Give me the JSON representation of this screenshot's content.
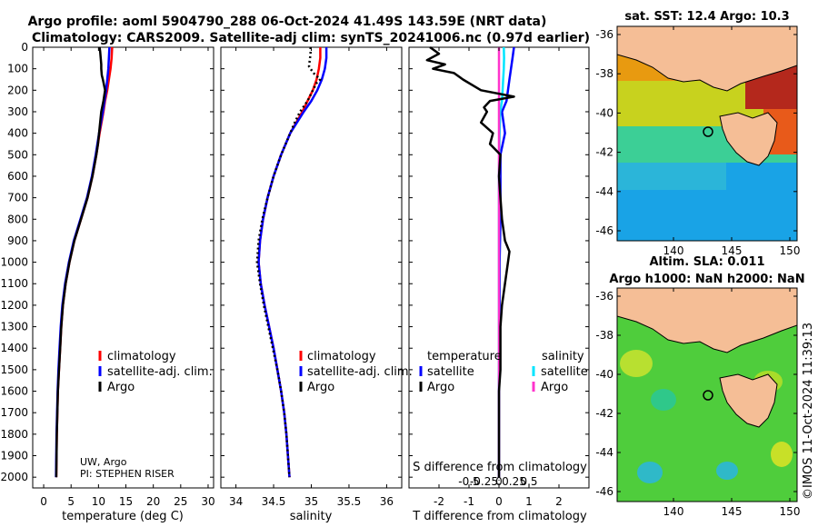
{
  "title": {
    "line1": "Argo profile: aoml 5904790_288 06-Oct-2024 41.49S 143.59E (NRT data)",
    "line2": "Climatology: CARS2009. Satellite-adj clim: synTS_20241006.nc (0.97d earlier)"
  },
  "depth_ticks": [
    "0",
    "100",
    "200",
    "300",
    "400",
    "500",
    "600",
    "700",
    "800",
    "900",
    "1000",
    "1100",
    "1200",
    "1300",
    "1400",
    "1500",
    "1600",
    "1700",
    "1800",
    "1900",
    "2000"
  ],
  "chart_data": [
    {
      "type": "line",
      "name": "temperature",
      "xlabel": "temperature (deg C)",
      "ylabel": "depth",
      "xlim": [
        -2,
        31
      ],
      "ylim": [
        2050,
        0
      ],
      "xticks": [
        "0",
        "5",
        "10",
        "15",
        "20",
        "25",
        "30"
      ],
      "xtick_values": [
        0,
        5,
        10,
        15,
        20,
        25,
        30
      ],
      "legend": {
        "location": "lower-right",
        "items": [
          "climatology",
          "satellite-adj. clim.",
          "Argo"
        ]
      },
      "annotation_line1": "UW, Argo",
      "annotation_line2": "PI: STEPHEN RISER",
      "series": [
        {
          "name": "climatology",
          "color": "#ff0000",
          "style": "solid",
          "depth": [
            0,
            50,
            100,
            150,
            200,
            250,
            300,
            400,
            500,
            600,
            700,
            800,
            900,
            1000,
            1100,
            1200,
            1300,
            1400,
            1500,
            1600,
            1700,
            1800,
            1900,
            2000
          ],
          "values": [
            12.5,
            12.4,
            12.2,
            11.9,
            11.6,
            11.2,
            10.9,
            10.2,
            9.6,
            8.9,
            8.0,
            6.8,
            5.6,
            4.7,
            4.0,
            3.5,
            3.2,
            3.0,
            2.8,
            2.6,
            2.5,
            2.4,
            2.35,
            2.3
          ]
        },
        {
          "name": "satellite-adj. clim.",
          "color": "#0000ff",
          "style": "solid",
          "depth": [
            0,
            50,
            100,
            150,
            200,
            250,
            300,
            400,
            500,
            600,
            700,
            800,
            900,
            1000,
            1100,
            1200,
            1300,
            1400,
            1500,
            1600,
            1700,
            1800,
            1900,
            2000
          ],
          "values": [
            12.0,
            11.9,
            11.8,
            11.6,
            11.4,
            11.1,
            10.8,
            10.1,
            9.5,
            8.8,
            7.9,
            6.7,
            5.5,
            4.6,
            3.9,
            3.4,
            3.1,
            2.9,
            2.7,
            2.55,
            2.45,
            2.35,
            2.3,
            2.25
          ]
        },
        {
          "name": "Argo",
          "color": "#000000",
          "style": "solid",
          "depth": [
            0,
            20,
            50,
            80,
            100,
            130,
            150,
            200,
            250,
            300,
            350,
            400,
            450,
            500,
            600,
            700,
            800,
            900,
            1000,
            1100,
            1200,
            1300,
            1400,
            1500,
            1600,
            1700,
            1800,
            1900,
            2000
          ],
          "values": [
            10.2,
            10.3,
            10.4,
            10.5,
            10.5,
            10.6,
            10.8,
            11.2,
            10.9,
            10.5,
            10.3,
            10.1,
            9.9,
            9.6,
            8.9,
            8.0,
            6.8,
            5.6,
            4.7,
            4.0,
            3.5,
            3.2,
            3.0,
            2.8,
            2.6,
            2.5,
            2.4,
            2.35,
            2.3
          ]
        }
      ]
    },
    {
      "type": "line",
      "name": "salinity",
      "xlabel": "salinity",
      "ylabel": "depth",
      "xlim": [
        33.8,
        36.2
      ],
      "ylim": [
        2050,
        0
      ],
      "xticks": [
        "34",
        "34.5",
        "35",
        "35.5",
        "36"
      ],
      "xtick_values": [
        34,
        34.5,
        35,
        35.5,
        36
      ],
      "legend": {
        "location": "lower-right",
        "items": [
          "climatology",
          "satellite-adj. clim.",
          "Argo"
        ]
      },
      "series": [
        {
          "name": "climatology",
          "color": "#ff0000",
          "style": "solid",
          "depth": [
            0,
            50,
            100,
            150,
            200,
            250,
            300,
            400,
            500,
            600,
            700,
            800,
            900,
            1000,
            1100,
            1200,
            1300,
            1400,
            1500,
            1600,
            1700,
            1800,
            1900,
            2000
          ],
          "values": [
            35.12,
            35.12,
            35.1,
            35.07,
            35.02,
            34.95,
            34.88,
            34.72,
            34.6,
            34.5,
            34.42,
            34.36,
            34.32,
            34.3,
            34.33,
            34.38,
            34.44,
            34.5,
            34.55,
            34.6,
            34.64,
            34.67,
            34.69,
            34.71
          ]
        },
        {
          "name": "satellite-adj. clim.",
          "color": "#0000ff",
          "style": "solid",
          "depth": [
            0,
            50,
            100,
            150,
            200,
            250,
            300,
            400,
            500,
            600,
            700,
            800,
            900,
            1000,
            1100,
            1200,
            1300,
            1400,
            1500,
            1600,
            1700,
            1800,
            1900,
            2000
          ],
          "values": [
            35.2,
            35.2,
            35.18,
            35.14,
            35.08,
            35.0,
            34.9,
            34.72,
            34.6,
            34.5,
            34.42,
            34.36,
            34.32,
            34.3,
            34.33,
            34.38,
            34.44,
            34.5,
            34.55,
            34.6,
            34.64,
            34.67,
            34.69,
            34.71
          ]
        },
        {
          "name": "Argo",
          "color": "#000000",
          "style": "dotted",
          "depth": [
            0,
            30,
            60,
            90,
            120,
            150,
            160,
            200,
            250,
            300,
            350,
            400,
            450,
            500,
            600,
            700,
            800,
            900,
            1000,
            1100,
            1200,
            1300,
            1400,
            1500,
            1600,
            1700,
            1800,
            1900,
            2000
          ],
          "values": [
            34.99,
            34.99,
            34.98,
            34.97,
            35.03,
            35.12,
            35.08,
            35.02,
            34.95,
            34.85,
            34.78,
            34.72,
            34.66,
            34.6,
            34.5,
            34.42,
            34.35,
            34.3,
            34.28,
            34.32,
            34.37,
            34.43,
            34.49,
            34.55,
            34.6,
            34.64,
            34.67,
            34.69,
            34.71
          ]
        }
      ]
    },
    {
      "type": "line",
      "name": "difference",
      "xlabel": "T difference from climatology",
      "xlabel_top": "S difference from climatology",
      "ylim": [
        2050,
        0
      ],
      "xlim": [
        -3,
        3
      ],
      "xticks": [
        "-2",
        "-1",
        "0",
        "1",
        "2"
      ],
      "xtick_values": [
        -2,
        -1,
        0,
        1,
        2
      ],
      "xticks_s": [
        "-0.5",
        "-0.25",
        "0",
        "0.25",
        "0.5"
      ],
      "xtick_values_s": [
        -1,
        -0.5,
        0,
        0.5,
        1
      ],
      "legend": {
        "location": "lower",
        "temperature_header": "temperature",
        "salinity_header": "salinity",
        "temperature_items": [
          "satellite",
          "Argo"
        ],
        "salinity_items": [
          "satellite",
          "Argo"
        ]
      },
      "series": [
        {
          "name": "T satellite",
          "color": "#0000ff",
          "depth": [
            0,
            50,
            100,
            150,
            200,
            250,
            300,
            400,
            500,
            600,
            800,
            1000,
            1200,
            1400,
            1600,
            1800,
            2000
          ],
          "values": [
            0.5,
            0.45,
            0.4,
            0.35,
            0.3,
            0.25,
            0.1,
            0.2,
            0.05,
            0.05,
            0.05,
            0.02,
            0.02,
            0.01,
            0.0,
            0.0,
            0.0
          ]
        },
        {
          "name": "T Argo",
          "color": "#000000",
          "depth": [
            0,
            30,
            60,
            80,
            100,
            120,
            150,
            200,
            230,
            250,
            280,
            300,
            350,
            400,
            450,
            500,
            600,
            700,
            800,
            900,
            950,
            1000,
            1100,
            1200,
            1300,
            1400,
            1500,
            1600,
            1700,
            1800,
            1900,
            2000
          ],
          "values": [
            -2.3,
            -2.0,
            -2.4,
            -1.8,
            -2.2,
            -1.5,
            -1.2,
            -0.6,
            0.5,
            -0.3,
            -0.5,
            -0.4,
            -0.6,
            -0.2,
            -0.3,
            0.05,
            0.0,
            0.05,
            0.1,
            0.2,
            0.35,
            0.3,
            0.2,
            0.1,
            0.05,
            0.05,
            0.05,
            0.0,
            0.0,
            0.0,
            0.0,
            0.0
          ]
        },
        {
          "name": "S satellite",
          "color": "#00e5ff",
          "depth": [
            0,
            50,
            100,
            150,
            200,
            250,
            300,
            400,
            500,
            600,
            800,
            1000,
            1200,
            1400,
            1600,
            1800,
            2000
          ],
          "values": [
            0.16,
            0.17,
            0.16,
            0.14,
            0.12,
            0.1,
            0.04,
            0.02,
            0.01,
            0.0,
            0.0,
            0.0,
            0.0,
            0.0,
            0.0,
            0.0,
            0.0
          ]
        },
        {
          "name": "S Argo",
          "color": "#ff33cc",
          "depth": [
            0,
            2000
          ],
          "values": [
            0,
            0
          ]
        }
      ]
    }
  ],
  "maps": {
    "top": {
      "title": "sat. SST: 12.4 Argo: 10.3",
      "lat_ticks": [
        "-36",
        "-38",
        "-40",
        "-42",
        "-44",
        "-46"
      ],
      "lon_ticks": [
        "140",
        "145",
        "150"
      ]
    },
    "bottom": {
      "title1": "Altim. SLA: 0.011",
      "title2": "Argo h1000: NaN h2000: NaN",
      "lat_ticks": [
        "-36",
        "-38",
        "-40",
        "-42",
        "-44",
        "-46"
      ],
      "lon_ticks": [
        "140",
        "145",
        "150"
      ]
    },
    "credit": "©IMOS 11-Oct-2024 11:39:13"
  },
  "colors": {
    "land": "#f5be96",
    "red": "#ff0000",
    "blue": "#0000ff",
    "cyan": "#00e5ff",
    "magenta": "#ff33cc"
  }
}
